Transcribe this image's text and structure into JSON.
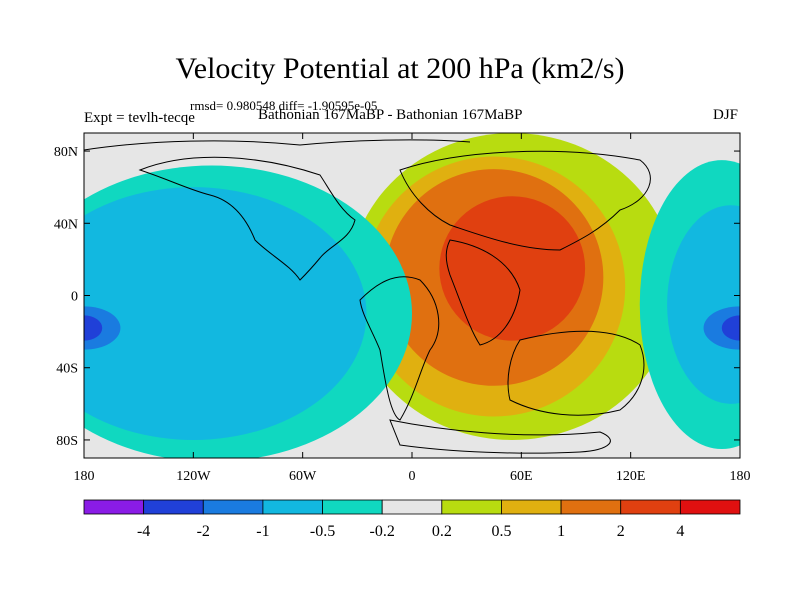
{
  "chart_data": {
    "type": "contour-map",
    "title": "Velocity Potential at 200 hPa (km2/s)",
    "stats": "rmsd= 0.980548 diff= -1.90595e-05",
    "experiment": "Expt = tevlh-tecqe",
    "subtitle": "Bathonian 167MaBP - Bathonian 167MaBP",
    "season": "DJF",
    "xlim": [
      -180,
      180
    ],
    "ylim": [
      -90,
      90
    ],
    "x_ticks": [
      {
        "value": -180,
        "label": "180"
      },
      {
        "value": -120,
        "label": "120W"
      },
      {
        "value": -60,
        "label": "60W"
      },
      {
        "value": 0,
        "label": "0"
      },
      {
        "value": 60,
        "label": "60E"
      },
      {
        "value": 120,
        "label": "120E"
      },
      {
        "value": 180,
        "label": "180"
      }
    ],
    "y_ticks": [
      {
        "value": 80,
        "label": "80N"
      },
      {
        "value": 40,
        "label": "40N"
      },
      {
        "value": 0,
        "label": "0"
      },
      {
        "value": -40,
        "label": "40S"
      },
      {
        "value": -80,
        "label": "80S"
      }
    ],
    "levels": [
      "-4",
      "-2",
      "-1",
      "-0.5",
      "-0.2",
      "0.2",
      "0.5",
      "1",
      "2",
      "4"
    ],
    "colors": [
      "#8a1ce6",
      "#2040d8",
      "#1a7be0",
      "#12b8e0",
      "#10d8c0",
      "#e6e6e6",
      "#b8dc10",
      "#e0b010",
      "#e07010",
      "#e04010",
      "#e01010"
    ],
    "regions": [
      {
        "level": 0.2,
        "center": [
          55,
          5
        ],
        "radius": [
          90,
          85
        ]
      },
      {
        "level": 0.5,
        "center": [
          45,
          5
        ],
        "radius": [
          72,
          72
        ]
      },
      {
        "level": 1,
        "center": [
          45,
          10
        ],
        "radius": [
          60,
          60
        ]
      },
      {
        "level": 2,
        "center": [
          55,
          15
        ],
        "radius": [
          40,
          40
        ]
      },
      {
        "level": -0.2,
        "center": [
          -110,
          -10
        ],
        "radius": [
          110,
          82
        ]
      },
      {
        "level": -0.5,
        "center": [
          -120,
          -10
        ],
        "radius": [
          95,
          70
        ]
      },
      {
        "level": -1,
        "center": [
          -180,
          -18
        ],
        "radius": [
          20,
          12
        ]
      },
      {
        "level": -2,
        "center": [
          -180,
          -18
        ],
        "radius": [
          10,
          7
        ]
      },
      {
        "level": -0.2,
        "center": [
          170,
          -5
        ],
        "radius": [
          45,
          80
        ]
      },
      {
        "level": -0.5,
        "center": [
          175,
          -5
        ],
        "radius": [
          35,
          55
        ]
      },
      {
        "level": -1,
        "center": [
          180,
          -18
        ],
        "radius": [
          20,
          12
        ]
      },
      {
        "level": -2,
        "center": [
          180,
          -18
        ],
        "radius": [
          10,
          7
        ]
      }
    ]
  }
}
